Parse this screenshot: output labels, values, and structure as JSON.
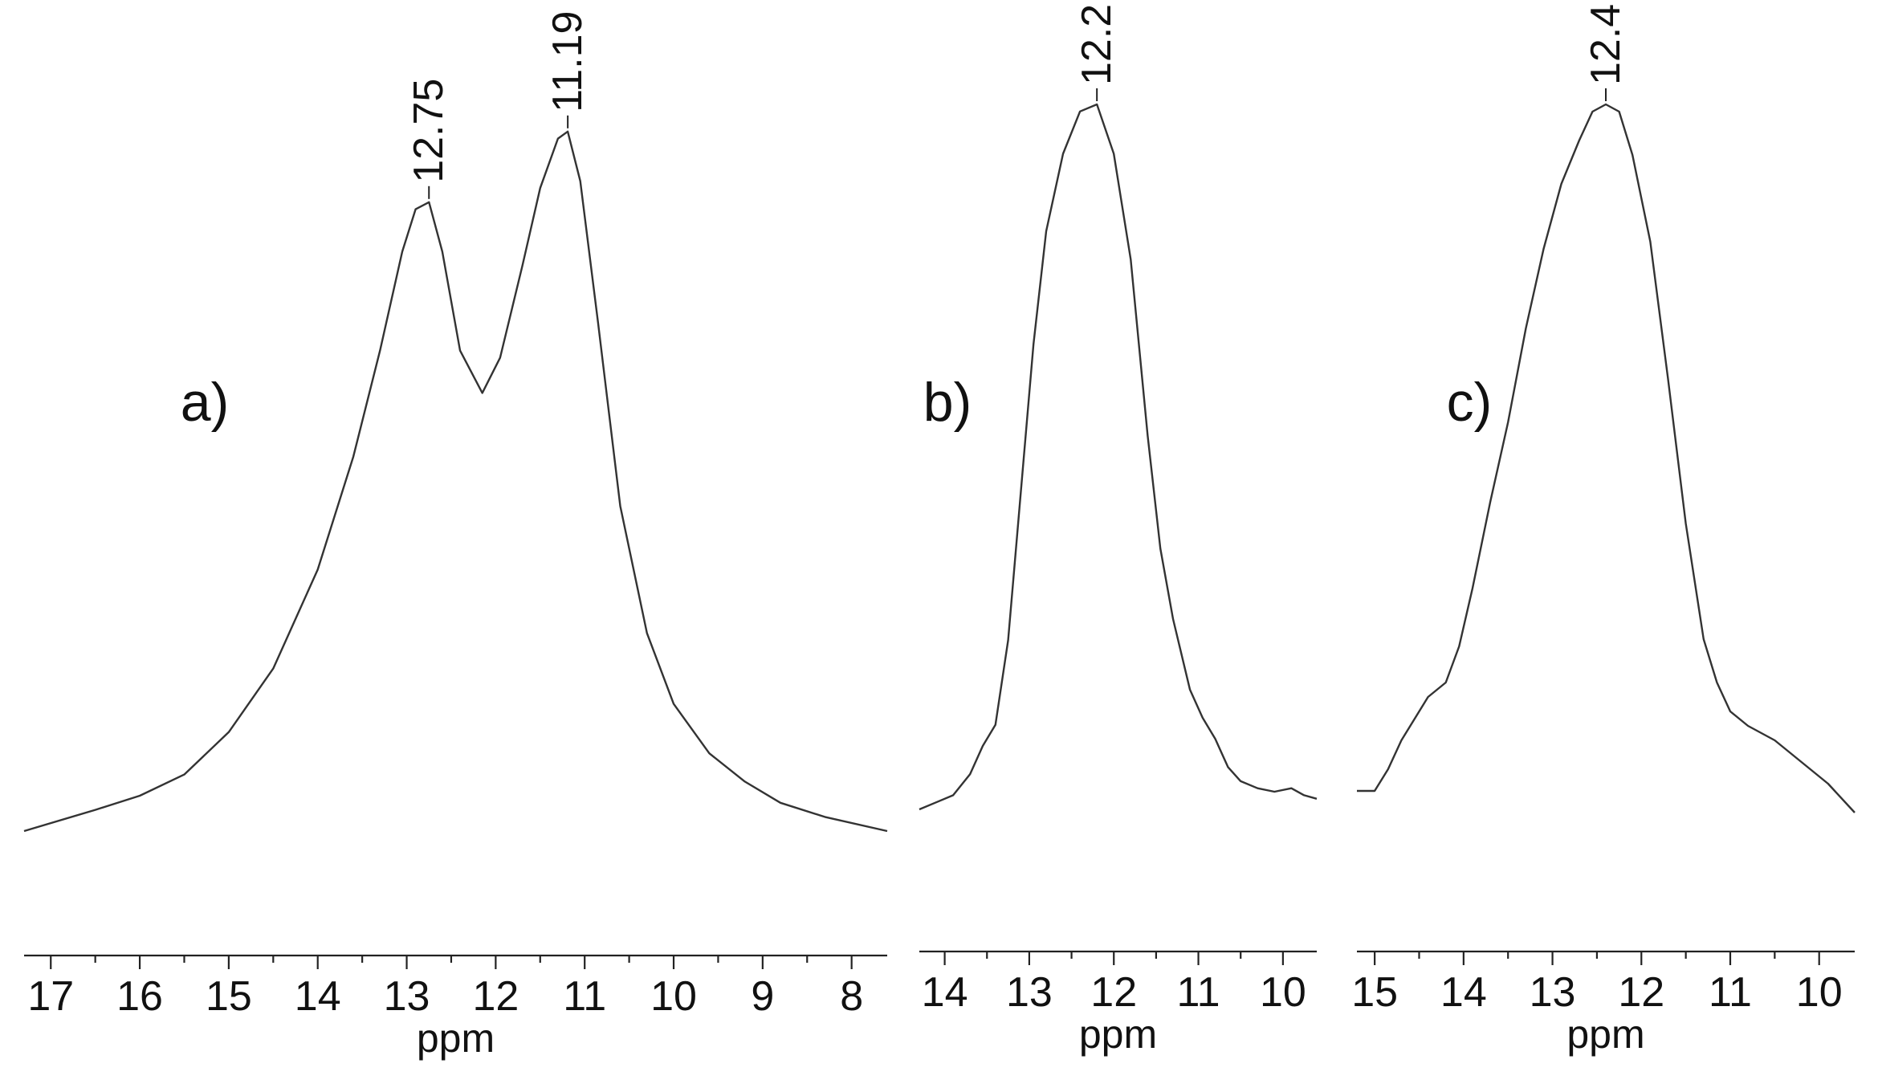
{
  "chart_data": [
    {
      "type": "line",
      "panel_label": "a)",
      "xlabel": "ppm",
      "ylabel": "",
      "x_reversed": true,
      "xlim": [
        17.3,
        7.6
      ],
      "x_ticks": [
        17,
        16,
        15,
        14,
        13,
        12,
        11,
        10,
        9,
        8
      ],
      "x_tick_labels": [
        "17",
        "16",
        "15",
        "14",
        "13",
        "12",
        "11",
        "10",
        "9",
        "8"
      ],
      "peak_labels": [
        {
          "x": 12.75,
          "text": "12.75"
        },
        {
          "x": 11.19,
          "text": "11.19"
        }
      ],
      "series": [
        {
          "x": [
            17.3,
            16.5,
            16.0,
            15.5,
            15.0,
            14.5,
            14.0,
            13.6,
            13.3,
            13.05,
            12.9,
            12.75,
            12.6,
            12.4,
            12.15,
            11.95,
            11.7,
            11.5,
            11.3,
            11.19,
            11.05,
            10.85,
            10.6,
            10.3,
            10.0,
            9.6,
            9.2,
            8.8,
            8.3,
            7.6
          ],
          "y": [
            0.0,
            0.03,
            0.05,
            0.08,
            0.14,
            0.23,
            0.37,
            0.53,
            0.68,
            0.82,
            0.88,
            0.89,
            0.82,
            0.68,
            0.62,
            0.67,
            0.8,
            0.91,
            0.98,
            0.99,
            0.92,
            0.72,
            0.46,
            0.28,
            0.18,
            0.11,
            0.07,
            0.04,
            0.02,
            0.0
          ]
        }
      ]
    },
    {
      "type": "line",
      "panel_label": "b)",
      "xlabel": "ppm",
      "ylabel": "",
      "x_reversed": true,
      "xlim": [
        14.3,
        9.6
      ],
      "x_ticks": [
        14,
        13,
        12,
        11,
        10
      ],
      "x_tick_labels": [
        "14",
        "13",
        "12",
        "11",
        "10"
      ],
      "peak_labels": [
        {
          "x": 12.2,
          "text": "12.2"
        }
      ],
      "series": [
        {
          "x": [
            14.3,
            14.1,
            13.9,
            13.7,
            13.55,
            13.4,
            13.25,
            13.1,
            12.95,
            12.8,
            12.6,
            12.4,
            12.2,
            12.0,
            11.8,
            11.6,
            11.45,
            11.3,
            11.1,
            10.95,
            10.8,
            10.65,
            10.5,
            10.3,
            10.1,
            9.9,
            9.75,
            9.6
          ],
          "y": [
            0.0,
            0.01,
            0.02,
            0.05,
            0.09,
            0.12,
            0.24,
            0.45,
            0.66,
            0.82,
            0.93,
            0.99,
            1.0,
            0.93,
            0.78,
            0.53,
            0.37,
            0.27,
            0.17,
            0.13,
            0.1,
            0.06,
            0.04,
            0.03,
            0.025,
            0.03,
            0.02,
            0.015
          ]
        }
      ]
    },
    {
      "type": "line",
      "panel_label": "c)",
      "xlabel": "ppm",
      "ylabel": "",
      "x_reversed": true,
      "xlim": [
        15.2,
        9.6
      ],
      "x_ticks": [
        15,
        14,
        13,
        12,
        11,
        10
      ],
      "x_tick_labels": [
        "15",
        "14",
        "13",
        "12",
        "11",
        "10"
      ],
      "peak_labels": [
        {
          "x": 12.4,
          "text": "12.4"
        }
      ],
      "series": [
        {
          "x": [
            15.2,
            15.0,
            14.85,
            14.7,
            14.55,
            14.4,
            14.2,
            14.05,
            13.9,
            13.7,
            13.5,
            13.3,
            13.1,
            12.9,
            12.7,
            12.55,
            12.4,
            12.25,
            12.1,
            11.9,
            11.7,
            11.5,
            11.3,
            11.15,
            11.0,
            10.8,
            10.5,
            10.2,
            9.9,
            9.6
          ],
          "y": [
            0.05,
            0.05,
            0.08,
            0.12,
            0.15,
            0.18,
            0.2,
            0.25,
            0.33,
            0.45,
            0.56,
            0.69,
            0.8,
            0.89,
            0.95,
            0.99,
            1.0,
            0.99,
            0.93,
            0.81,
            0.62,
            0.42,
            0.26,
            0.2,
            0.16,
            0.14,
            0.12,
            0.09,
            0.06,
            0.02
          ]
        }
      ]
    }
  ]
}
